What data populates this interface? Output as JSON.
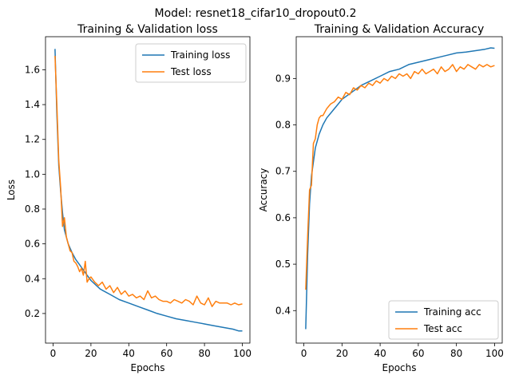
{
  "figure": {
    "suptitle": "Model: resnet18_cifar10_dropout0.2"
  },
  "chart_data": [
    {
      "type": "line",
      "title": "Training & Validation loss",
      "xlabel": "Epochs",
      "ylabel": "Loss",
      "xlim": [
        -4,
        104
      ],
      "ylim": [
        0.03,
        1.79
      ],
      "xticks": [
        0,
        20,
        40,
        60,
        80,
        100
      ],
      "yticks": [
        0.2,
        0.4,
        0.6,
        0.8,
        1.0,
        1.2,
        1.4,
        1.6
      ],
      "ytick_labels": [
        "0.2",
        "0.4",
        "0.6",
        "0.8",
        "1.0",
        "1.2",
        "1.4",
        "1.6"
      ],
      "legend_position": "top-right",
      "grid": false,
      "series": [
        {
          "name": "Training loss",
          "color": "#1f77b4",
          "x": [
            1,
            2,
            3,
            4,
            5,
            6,
            8,
            10,
            12,
            14,
            16,
            18,
            20,
            25,
            30,
            35,
            40,
            45,
            50,
            55,
            60,
            65,
            70,
            75,
            80,
            85,
            90,
            95,
            98,
            100
          ],
          "y": [
            1.72,
            1.35,
            1.05,
            0.9,
            0.78,
            0.68,
            0.6,
            0.55,
            0.51,
            0.48,
            0.45,
            0.42,
            0.39,
            0.34,
            0.31,
            0.28,
            0.26,
            0.24,
            0.22,
            0.2,
            0.185,
            0.17,
            0.16,
            0.15,
            0.14,
            0.13,
            0.12,
            0.11,
            0.1,
            0.1
          ]
        },
        {
          "name": "Test loss",
          "color": "#ff7f0e",
          "x": [
            1,
            2,
            3,
            4,
            5,
            6,
            7,
            8,
            9,
            10,
            11,
            12,
            13,
            14,
            15,
            16,
            17,
            18,
            19,
            20,
            22,
            24,
            26,
            28,
            30,
            32,
            34,
            36,
            38,
            40,
            42,
            44,
            46,
            48,
            50,
            52,
            54,
            56,
            58,
            60,
            62,
            64,
            66,
            68,
            70,
            72,
            74,
            76,
            78,
            80,
            82,
            84,
            86,
            88,
            90,
            92,
            94,
            96,
            98,
            100
          ],
          "y": [
            1.68,
            1.4,
            1.08,
            0.92,
            0.7,
            0.75,
            0.64,
            0.6,
            0.56,
            0.55,
            0.5,
            0.49,
            0.47,
            0.44,
            0.46,
            0.42,
            0.5,
            0.38,
            0.4,
            0.41,
            0.38,
            0.36,
            0.38,
            0.34,
            0.36,
            0.32,
            0.35,
            0.31,
            0.33,
            0.3,
            0.31,
            0.29,
            0.3,
            0.28,
            0.33,
            0.29,
            0.3,
            0.28,
            0.27,
            0.27,
            0.26,
            0.28,
            0.27,
            0.26,
            0.28,
            0.27,
            0.25,
            0.3,
            0.26,
            0.25,
            0.29,
            0.24,
            0.27,
            0.26,
            0.26,
            0.26,
            0.25,
            0.26,
            0.25,
            0.255
          ]
        }
      ]
    },
    {
      "type": "line",
      "title": "Training & Validation Accuracy",
      "xlabel": "Epochs",
      "ylabel": "Accuracy",
      "xlim": [
        -4,
        104
      ],
      "ylim": [
        0.33,
        0.99
      ],
      "xticks": [
        0,
        20,
        40,
        60,
        80,
        100
      ],
      "yticks": [
        0.4,
        0.5,
        0.6,
        0.7,
        0.8,
        0.9
      ],
      "ytick_labels": [
        "0.4",
        "0.5",
        "0.6",
        "0.7",
        "0.8",
        "0.9"
      ],
      "legend_position": "bottom-right",
      "grid": false,
      "series": [
        {
          "name": "Training acc",
          "color": "#1f77b4",
          "x": [
            1,
            2,
            3,
            4,
            5,
            6,
            8,
            10,
            12,
            15,
            18,
            20,
            25,
            30,
            35,
            40,
            45,
            50,
            55,
            60,
            65,
            70,
            75,
            80,
            85,
            90,
            95,
            98,
            100
          ],
          "y": [
            0.36,
            0.52,
            0.63,
            0.69,
            0.72,
            0.75,
            0.78,
            0.8,
            0.815,
            0.83,
            0.845,
            0.855,
            0.87,
            0.885,
            0.895,
            0.905,
            0.915,
            0.92,
            0.93,
            0.935,
            0.94,
            0.945,
            0.95,
            0.955,
            0.957,
            0.96,
            0.963,
            0.966,
            0.965
          ]
        },
        {
          "name": "Test acc",
          "color": "#ff7f0e",
          "x": [
            1,
            2,
            3,
            4,
            5,
            6,
            7,
            8,
            9,
            10,
            12,
            14,
            16,
            18,
            20,
            22,
            24,
            26,
            28,
            30,
            32,
            34,
            36,
            38,
            40,
            42,
            44,
            46,
            48,
            50,
            52,
            54,
            56,
            58,
            60,
            62,
            64,
            66,
            68,
            70,
            72,
            74,
            76,
            78,
            80,
            82,
            84,
            86,
            88,
            90,
            92,
            94,
            96,
            98,
            100
          ],
          "y": [
            0.445,
            0.56,
            0.66,
            0.67,
            0.76,
            0.77,
            0.8,
            0.815,
            0.82,
            0.82,
            0.835,
            0.845,
            0.85,
            0.86,
            0.855,
            0.87,
            0.865,
            0.88,
            0.875,
            0.885,
            0.88,
            0.89,
            0.885,
            0.895,
            0.89,
            0.9,
            0.895,
            0.905,
            0.9,
            0.91,
            0.905,
            0.91,
            0.9,
            0.915,
            0.91,
            0.92,
            0.91,
            0.915,
            0.92,
            0.91,
            0.925,
            0.915,
            0.92,
            0.93,
            0.915,
            0.925,
            0.92,
            0.93,
            0.925,
            0.92,
            0.93,
            0.925,
            0.93,
            0.925,
            0.928
          ]
        }
      ]
    }
  ]
}
